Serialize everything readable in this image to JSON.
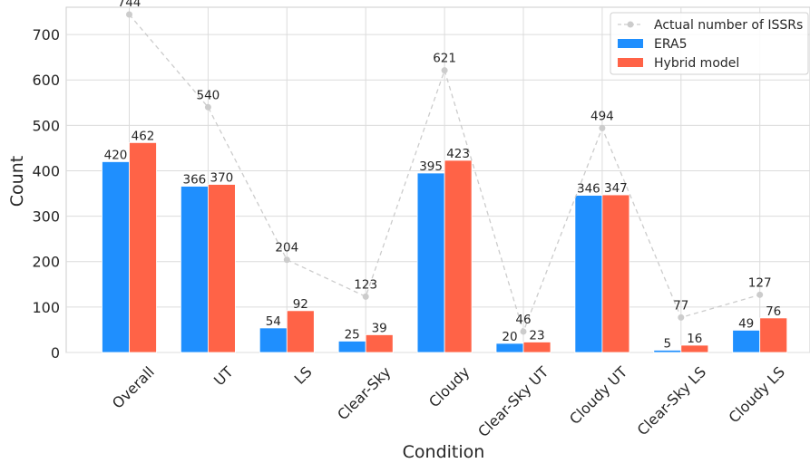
{
  "chart_data": {
    "type": "bar",
    "title": "",
    "xlabel": "Condition",
    "ylabel": "Count",
    "ylim": [
      0,
      760
    ],
    "yticks": [
      0,
      100,
      200,
      300,
      400,
      500,
      600,
      700
    ],
    "grid": true,
    "legend_position": "top-right",
    "categories": [
      "Overall",
      "UT",
      "LS",
      "Clear-Sky",
      "Cloudy",
      "Clear-Sky UT",
      "Cloudy UT",
      "Clear-Sky LS",
      "Cloudy LS"
    ],
    "series": [
      {
        "name": "ERA5",
        "kind": "bar",
        "color": "#1f8ffe",
        "values": [
          420,
          366,
          54,
          25,
          395,
          20,
          346,
          5,
          49
        ]
      },
      {
        "name": "Hybrid model",
        "kind": "bar",
        "color": "#ff6347",
        "values": [
          462,
          370,
          92,
          39,
          423,
          23,
          347,
          16,
          76
        ]
      },
      {
        "name": "Actual number of ISSRs",
        "kind": "line",
        "style": "dashed",
        "color": "#cccccc",
        "values": [
          744,
          540,
          204,
          123,
          621,
          46,
          494,
          77,
          127
        ]
      }
    ]
  }
}
